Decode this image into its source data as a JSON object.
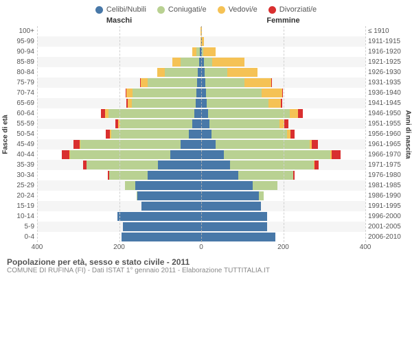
{
  "legend": {
    "items": [
      {
        "label": "Celibi/Nubili",
        "color": "#4878a8"
      },
      {
        "label": "Coniugati/e",
        "color": "#b9d192"
      },
      {
        "label": "Vedovi/e",
        "color": "#f5c255"
      },
      {
        "label": "Divorziati/e",
        "color": "#d92f2f"
      }
    ]
  },
  "headers": {
    "male": "Maschi",
    "female": "Femmine"
  },
  "axis_labels": {
    "left": "Fasce di età",
    "right": "Anni di nascita"
  },
  "title": "Popolazione per età, sesso e stato civile - 2011",
  "subtitle": "COMUNE DI RUFINA (FI) - Dati ISTAT 1° gennaio 2011 - Elaborazione TUTTITALIA.IT",
  "x_axis": {
    "max": 400,
    "ticks_left": [
      400,
      200,
      0
    ],
    "ticks_right": [
      0,
      200,
      400
    ]
  },
  "colors": {
    "celibi": "#4878a8",
    "coniugati": "#b9d192",
    "vedovi": "#f5c255",
    "divorziati": "#d92f2f",
    "grid": "#d0d0d0",
    "alt_row": "#f5f5f5"
  },
  "rows": [
    {
      "age": "100+",
      "birth": "≤ 1910",
      "m": {
        "c": 0,
        "co": 0,
        "v": 1,
        "d": 0
      },
      "f": {
        "c": 0,
        "co": 0,
        "v": 2,
        "d": 0
      }
    },
    {
      "age": "95-99",
      "birth": "1911-1915",
      "m": {
        "c": 0,
        "co": 0,
        "v": 2,
        "d": 0
      },
      "f": {
        "c": 1,
        "co": 0,
        "v": 6,
        "d": 0
      }
    },
    {
      "age": "90-94",
      "birth": "1916-1920",
      "m": {
        "c": 3,
        "co": 8,
        "v": 10,
        "d": 0
      },
      "f": {
        "c": 2,
        "co": 3,
        "v": 30,
        "d": 0
      }
    },
    {
      "age": "85-89",
      "birth": "1921-1925",
      "m": {
        "c": 5,
        "co": 45,
        "v": 20,
        "d": 0
      },
      "f": {
        "c": 6,
        "co": 20,
        "v": 80,
        "d": 0
      }
    },
    {
      "age": "80-84",
      "birth": "1926-1930",
      "m": {
        "c": 8,
        "co": 80,
        "v": 20,
        "d": 0
      },
      "f": {
        "c": 8,
        "co": 55,
        "v": 75,
        "d": 0
      }
    },
    {
      "age": "75-79",
      "birth": "1931-1935",
      "m": {
        "c": 10,
        "co": 120,
        "v": 18,
        "d": 1
      },
      "f": {
        "c": 10,
        "co": 95,
        "v": 65,
        "d": 1
      }
    },
    {
      "age": "70-74",
      "birth": "1936-1940",
      "m": {
        "c": 12,
        "co": 155,
        "v": 15,
        "d": 3
      },
      "f": {
        "c": 12,
        "co": 135,
        "v": 50,
        "d": 3
      }
    },
    {
      "age": "65-69",
      "birth": "1941-1945",
      "m": {
        "c": 14,
        "co": 155,
        "v": 10,
        "d": 4
      },
      "f": {
        "c": 14,
        "co": 150,
        "v": 30,
        "d": 4
      }
    },
    {
      "age": "60-64",
      "birth": "1946-1950",
      "m": {
        "c": 16,
        "co": 210,
        "v": 8,
        "d": 10
      },
      "f": {
        "c": 16,
        "co": 200,
        "v": 20,
        "d": 12
      }
    },
    {
      "age": "55-59",
      "birth": "1951-1955",
      "m": {
        "c": 22,
        "co": 175,
        "v": 5,
        "d": 8
      },
      "f": {
        "c": 20,
        "co": 170,
        "v": 12,
        "d": 10
      }
    },
    {
      "age": "50-54",
      "birth": "1956-1960",
      "m": {
        "c": 30,
        "co": 190,
        "v": 3,
        "d": 10
      },
      "f": {
        "c": 25,
        "co": 185,
        "v": 8,
        "d": 10
      }
    },
    {
      "age": "45-49",
      "birth": "1961-1965",
      "m": {
        "c": 50,
        "co": 245,
        "v": 2,
        "d": 14
      },
      "f": {
        "c": 35,
        "co": 230,
        "v": 5,
        "d": 15
      }
    },
    {
      "age": "40-44",
      "birth": "1966-1970",
      "m": {
        "c": 75,
        "co": 245,
        "v": 1,
        "d": 18
      },
      "f": {
        "c": 55,
        "co": 260,
        "v": 3,
        "d": 22
      }
    },
    {
      "age": "35-39",
      "birth": "1971-1975",
      "m": {
        "c": 105,
        "co": 175,
        "v": 0,
        "d": 8
      },
      "f": {
        "c": 70,
        "co": 205,
        "v": 1,
        "d": 10
      }
    },
    {
      "age": "30-34",
      "birth": "1976-1980",
      "m": {
        "c": 130,
        "co": 95,
        "v": 0,
        "d": 3
      },
      "f": {
        "c": 90,
        "co": 135,
        "v": 0,
        "d": 3
      }
    },
    {
      "age": "25-29",
      "birth": "1981-1985",
      "m": {
        "c": 160,
        "co": 25,
        "v": 0,
        "d": 0
      },
      "f": {
        "c": 125,
        "co": 60,
        "v": 0,
        "d": 0
      }
    },
    {
      "age": "20-24",
      "birth": "1986-1990",
      "m": {
        "c": 155,
        "co": 3,
        "v": 0,
        "d": 0
      },
      "f": {
        "c": 140,
        "co": 12,
        "v": 0,
        "d": 0
      }
    },
    {
      "age": "15-19",
      "birth": "1991-1995",
      "m": {
        "c": 145,
        "co": 0,
        "v": 0,
        "d": 0
      },
      "f": {
        "c": 145,
        "co": 0,
        "v": 0,
        "d": 0
      }
    },
    {
      "age": "10-14",
      "birth": "1996-2000",
      "m": {
        "c": 205,
        "co": 0,
        "v": 0,
        "d": 0
      },
      "f": {
        "c": 160,
        "co": 0,
        "v": 0,
        "d": 0
      }
    },
    {
      "age": "5-9",
      "birth": "2001-2005",
      "m": {
        "c": 190,
        "co": 0,
        "v": 0,
        "d": 0
      },
      "f": {
        "c": 160,
        "co": 0,
        "v": 0,
        "d": 0
      }
    },
    {
      "age": "0-4",
      "birth": "2006-2010",
      "m": {
        "c": 195,
        "co": 0,
        "v": 0,
        "d": 0
      },
      "f": {
        "c": 180,
        "co": 0,
        "v": 0,
        "d": 0
      }
    }
  ]
}
